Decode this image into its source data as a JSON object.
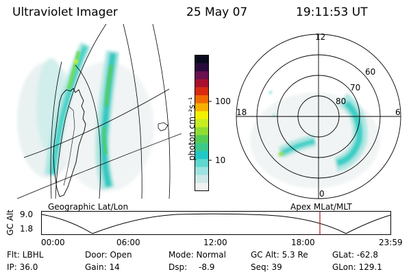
{
  "header": {
    "instrument": "Ultraviolet Imager",
    "date": "25 May 07",
    "time": "19:11:53 UT"
  },
  "geo_panel": {
    "label": "Geographic Lat/Lon"
  },
  "colorbar": {
    "unit_label": "photon cm⁻²s⁻¹",
    "ticks": [
      {
        "label": "100",
        "value": 100
      },
      {
        "label": "10",
        "value": 10
      }
    ],
    "colors": [
      "#f2f2f2",
      "#cfe8e8",
      "#9fe3e0",
      "#5fd8d0",
      "#21c8c8",
      "#3cc98a",
      "#55cc55",
      "#8fdd33",
      "#c6ee22",
      "#f2f200",
      "#f7b000",
      "#f06a00",
      "#d92a10",
      "#a8102e",
      "#6b1050",
      "#2a0a3c",
      "#0a0a1e"
    ]
  },
  "polar_panel": {
    "label": "Apex MLat/MLT",
    "mlt_labels": {
      "top": "12",
      "left": "18",
      "right": "6",
      "bottom": "0"
    },
    "lat_labels": [
      "60",
      "70",
      "80"
    ]
  },
  "altitude_strip": {
    "axis_label": "GC Alt",
    "y_ticks": [
      "9.0",
      "1.8"
    ],
    "x_ticks": [
      "00:00",
      "06:00",
      "12:00",
      "18:00",
      "23:59"
    ],
    "marker_color": "#b01818"
  },
  "status": {
    "flt": "Flt: LBHL",
    "ip": "IP: 36.0",
    "door": "Door: Open",
    "gain": "Gain: 14",
    "mode": "Mode: Normal",
    "dsp": "Dsp:",
    "dsp_value": "-8.9",
    "gc_alt": "GC Alt: 5.3 Re",
    "seq": "Seq: 39",
    "glat": "GLat: -62.8",
    "glon": "GLon: 129.1"
  }
}
